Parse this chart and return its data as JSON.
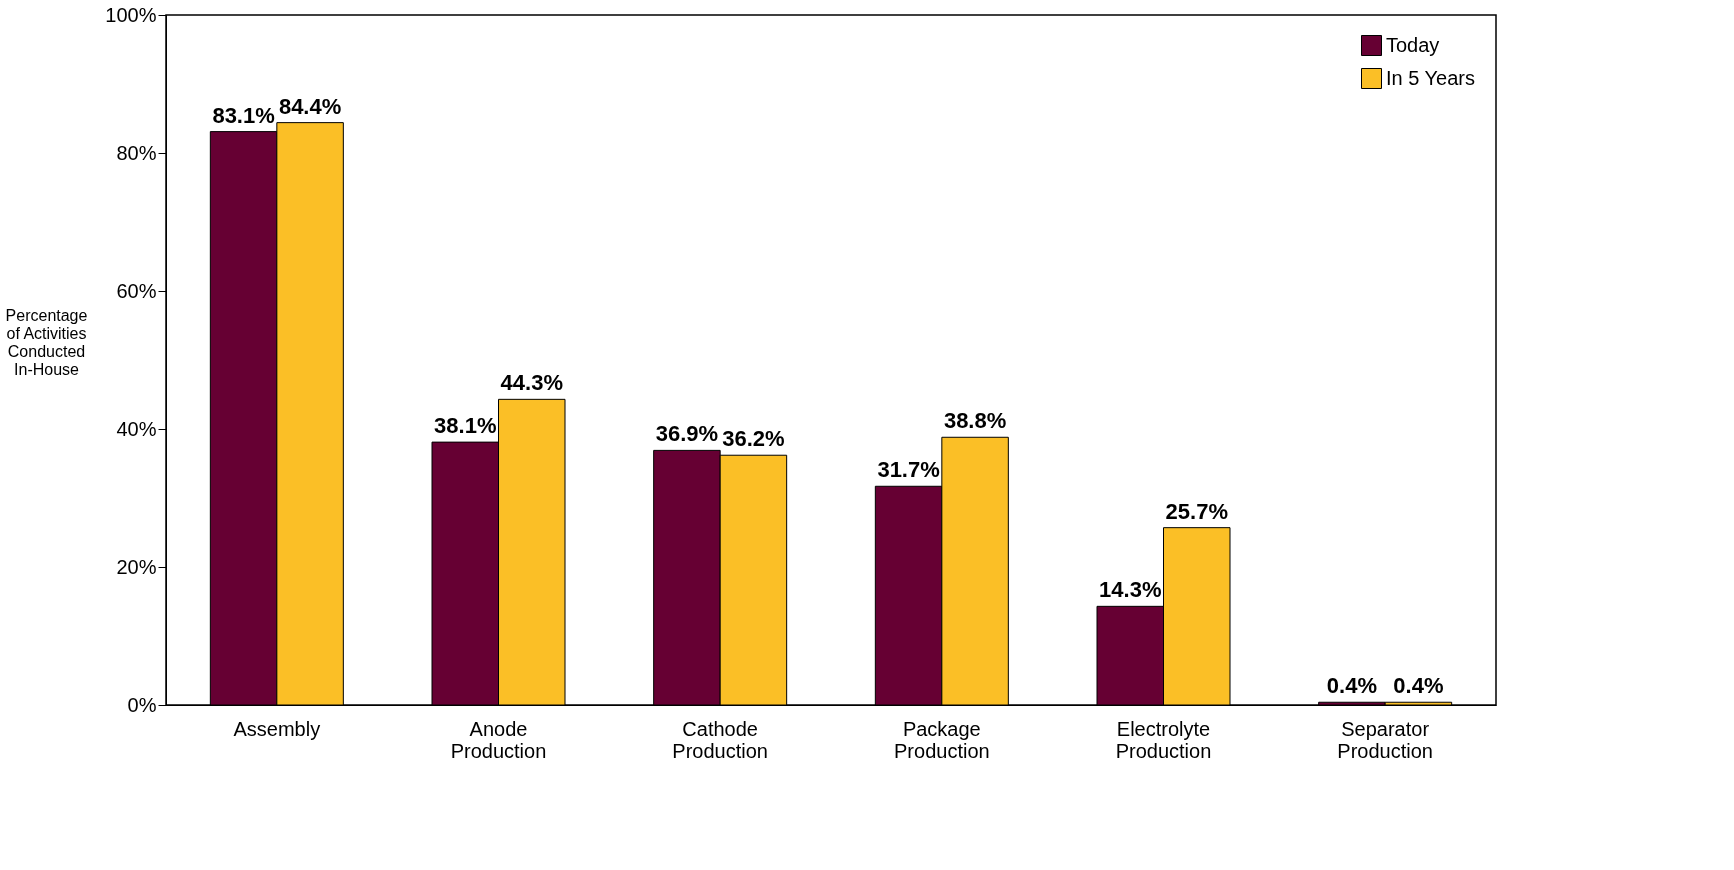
{
  "chart_data": {
    "type": "bar",
    "ylabel": "Percentage\nof Activities\nConducted\nIn-House",
    "categories": [
      "Assembly",
      "Anode Production",
      "Cathode Production",
      "Package Production",
      "Electrolyte Production",
      "Separator Production"
    ],
    "series": [
      {
        "name": "Today",
        "color": "#660033",
        "values": [
          83.1,
          38.1,
          36.9,
          31.7,
          14.3,
          0.4
        ],
        "value_labels": [
          "83.1%",
          "38.1%",
          "36.9%",
          "31.7%",
          "14.3%",
          "0.4%"
        ]
      },
      {
        "name": "In 5 Years",
        "color": "#fbbf26",
        "values": [
          84.4,
          44.3,
          36.2,
          38.8,
          25.7,
          0.4
        ],
        "value_labels": [
          "84.4%",
          "44.3%",
          "36.2%",
          "38.8%",
          "25.7%",
          "0.4%"
        ]
      }
    ],
    "ylim": [
      0,
      100
    ],
    "yticks": [
      {
        "value": 0,
        "label": "0%"
      },
      {
        "value": 20,
        "label": "20%"
      },
      {
        "value": 40,
        "label": "40%"
      },
      {
        "value": 60,
        "label": "60%"
      },
      {
        "value": 80,
        "label": "80%"
      },
      {
        "value": 100,
        "label": "100%"
      }
    ],
    "grid": false,
    "legend": "top right"
  }
}
